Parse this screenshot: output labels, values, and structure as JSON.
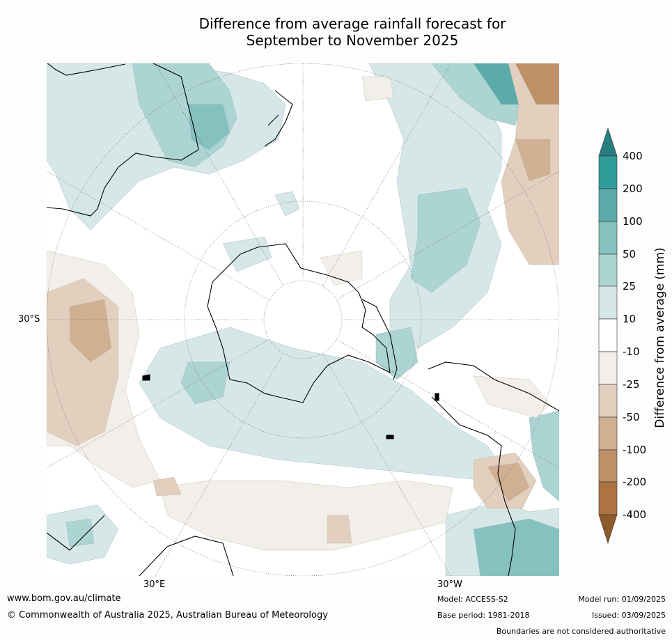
{
  "title": {
    "line1": "Difference from average rainfall forecast for",
    "line2": "September to November 2025"
  },
  "map": {
    "lat_label": "30°S",
    "lon_labels": [
      "30°E",
      "30°W"
    ]
  },
  "colorbar": {
    "label": "Difference from average (mm)",
    "levels": [
      "400",
      "200",
      "100",
      "50",
      "25",
      "10",
      "-10",
      "-25",
      "-50",
      "-100",
      "-200",
      "-400"
    ],
    "colors": {
      "extend_top": "#277e7f",
      "c400": "#2f9c9a",
      "c200": "#5aabaa",
      "c100": "#85c1bf",
      "c50": "#acd4d3",
      "c25": "#d5e8e7",
      "c10": "#ffffff",
      "cm10": "#f2eee9",
      "cm25": "#e2cfbe",
      "cm50": "#d0b092",
      "cm100": "#be9067",
      "cm200": "#ad7441",
      "extend_bottom": "#8d5a2b"
    }
  },
  "footer": {
    "website": "www.bom.gov.au/climate",
    "copyright": "© Commonwealth of Australia 2025, Australian Bureau of Meteorology",
    "model": "Model: ACCESS-S2",
    "base_period": "Base period: 1981-2018",
    "model_run": "Model run: 01/09/2025",
    "issued": "Issued: 03/09/2025",
    "boundaries": "Boundaries are not considered authoritative"
  }
}
